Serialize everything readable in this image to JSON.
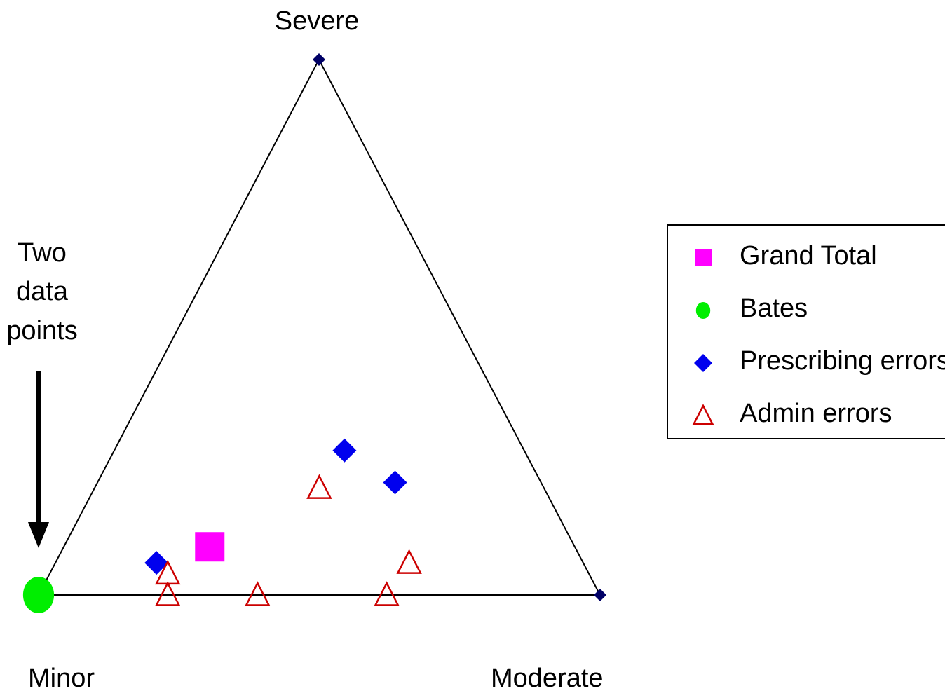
{
  "chart_data": {
    "type": "scatter",
    "plot_kind": "ternary",
    "vertices": {
      "top": "Severe",
      "bottom_left": "Minor",
      "bottom_right": "Moderate"
    },
    "annotation": {
      "lines": [
        "Two",
        "data",
        "points"
      ],
      "points_to": "Minor vertex",
      "arrow": true
    },
    "legend": {
      "placement": "right",
      "entries": [
        "Grand Total",
        "Bates",
        "Prescribing errors",
        "Admin errors"
      ]
    },
    "components": [
      "Minor",
      "Moderate",
      "Severe"
    ],
    "series": [
      {
        "name": "Grand Total",
        "marker": "square",
        "color": "#ff00ff",
        "points": [
          {
            "minor": 0.65,
            "moderate": 0.26,
            "severe": 0.09
          }
        ]
      },
      {
        "name": "Bates",
        "marker": "circle",
        "color": "#00ee00",
        "points": [
          {
            "minor": 1.0,
            "moderate": 0.0,
            "severe": 0.0
          }
        ]
      },
      {
        "name": "Prescribing errors",
        "marker": "diamond",
        "color": "#0000ee",
        "points": [
          {
            "minor": 0.76,
            "moderate": 0.18,
            "severe": 0.06
          },
          {
            "minor": 0.32,
            "moderate": 0.41,
            "severe": 0.27
          },
          {
            "minor": 0.26,
            "moderate": 0.53,
            "severe": 0.21
          }
        ]
      },
      {
        "name": "Admin errors",
        "marker": "triangle-open",
        "color": "#cc0000",
        "points": [
          {
            "minor": 0.75,
            "moderate": 0.21,
            "severe": 0.04
          },
          {
            "minor": 0.77,
            "moderate": 0.23,
            "severe": 0.0
          },
          {
            "minor": 0.61,
            "moderate": 0.39,
            "severe": 0.0
          },
          {
            "minor": 0.4,
            "moderate": 0.4,
            "severe": 0.2
          },
          {
            "minor": 0.38,
            "moderate": 0.62,
            "severe": 0.0
          },
          {
            "minor": 0.31,
            "moderate": 0.63,
            "severe": 0.06
          }
        ]
      }
    ],
    "vertex_marker_color": "#000066"
  }
}
